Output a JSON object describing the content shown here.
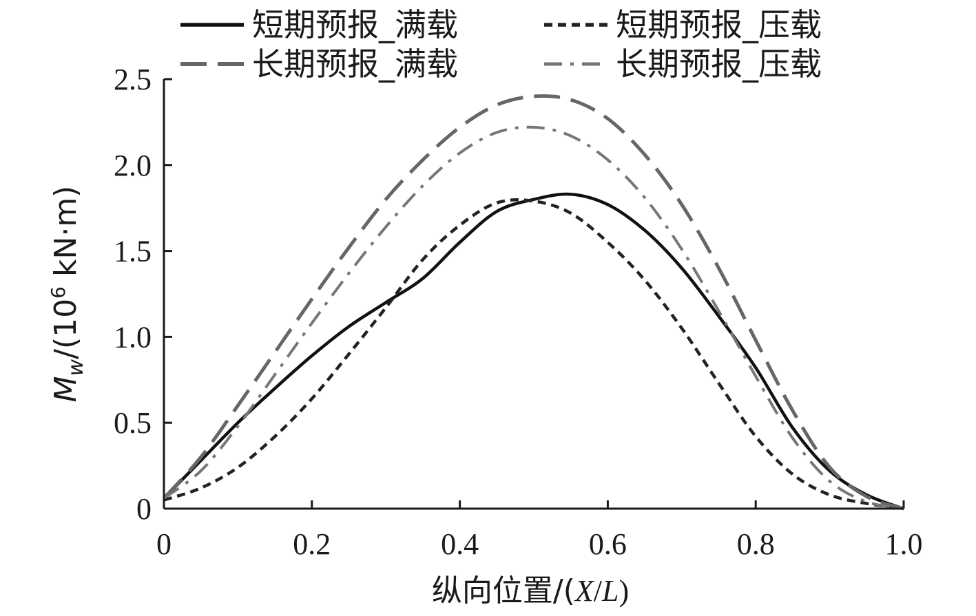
{
  "chart_data": {
    "type": "line",
    "title": "",
    "xlabel": "纵向位置/(X/L)",
    "ylabel": "M_w/(10^6 kN·m)",
    "ylabel_parts": {
      "main": "M",
      "sub": "w",
      "mid": "/(10",
      "sup": "6",
      "tail": " kN·m)"
    },
    "xlabel_parts": {
      "prefix": "纵向位置/(",
      "x": "X",
      "slash": "/",
      "l": "L",
      "suffix": ")"
    },
    "xlim": [
      0,
      1.0
    ],
    "ylim": [
      0,
      2.5
    ],
    "grid": false,
    "legend_position": "top",
    "x_ticks": [
      0,
      0.2,
      0.4,
      0.6,
      0.8,
      1.0
    ],
    "x_tick_labels": [
      "0",
      "0.2",
      "0.4",
      "0.6",
      "0.8",
      "1.0"
    ],
    "y_ticks": [
      0,
      0.5,
      1.0,
      1.5,
      2.0,
      2.5
    ],
    "y_tick_labels": [
      "0",
      "0.5",
      "1.0",
      "1.5",
      "2.0",
      "2.5"
    ],
    "series": [
      {
        "name": "短期预报_满载",
        "color": "#111111",
        "dash": "solid",
        "x": [
          0,
          0.05,
          0.1,
          0.15,
          0.2,
          0.25,
          0.3,
          0.35,
          0.4,
          0.45,
          0.5,
          0.55,
          0.6,
          0.65,
          0.7,
          0.75,
          0.8,
          0.85,
          0.9,
          0.95,
          1.0
        ],
        "y": [
          0.06,
          0.28,
          0.5,
          0.7,
          0.89,
          1.06,
          1.2,
          1.34,
          1.55,
          1.73,
          1.8,
          1.83,
          1.77,
          1.62,
          1.4,
          1.12,
          0.82,
          0.47,
          0.22,
          0.08,
          0.0
        ]
      },
      {
        "name": "短期预报_压载",
        "color": "#222222",
        "dash": "short",
        "x": [
          0,
          0.05,
          0.1,
          0.15,
          0.2,
          0.25,
          0.3,
          0.35,
          0.4,
          0.45,
          0.5,
          0.55,
          0.6,
          0.65,
          0.7,
          0.75,
          0.8,
          0.85,
          0.9,
          0.95,
          1.0
        ],
        "y": [
          0.05,
          0.12,
          0.24,
          0.42,
          0.64,
          0.9,
          1.17,
          1.45,
          1.65,
          1.78,
          1.79,
          1.72,
          1.55,
          1.33,
          1.05,
          0.73,
          0.42,
          0.2,
          0.08,
          0.03,
          0.0
        ]
      },
      {
        "name": "长期预报_满载",
        "color": "#666666",
        "dash": "long",
        "x": [
          0,
          0.05,
          0.1,
          0.15,
          0.2,
          0.25,
          0.3,
          0.35,
          0.4,
          0.45,
          0.5,
          0.55,
          0.6,
          0.65,
          0.7,
          0.75,
          0.8,
          0.85,
          0.9,
          0.95,
          1.0
        ],
        "y": [
          0.06,
          0.3,
          0.6,
          0.91,
          1.22,
          1.52,
          1.8,
          2.03,
          2.22,
          2.35,
          2.4,
          2.38,
          2.27,
          2.06,
          1.77,
          1.4,
          0.98,
          0.57,
          0.24,
          0.07,
          0.0
        ]
      },
      {
        "name": "长期预报_压载",
        "color": "#777777",
        "dash": "dashdot",
        "x": [
          0,
          0.05,
          0.1,
          0.15,
          0.2,
          0.25,
          0.3,
          0.35,
          0.4,
          0.45,
          0.5,
          0.55,
          0.6,
          0.65,
          0.7,
          0.75,
          0.8,
          0.85,
          0.9,
          0.95,
          1.0
        ],
        "y": [
          0.06,
          0.22,
          0.48,
          0.78,
          1.08,
          1.37,
          1.64,
          1.88,
          2.07,
          2.19,
          2.22,
          2.17,
          2.03,
          1.81,
          1.51,
          1.15,
          0.77,
          0.41,
          0.16,
          0.04,
          0.0
        ]
      }
    ]
  }
}
